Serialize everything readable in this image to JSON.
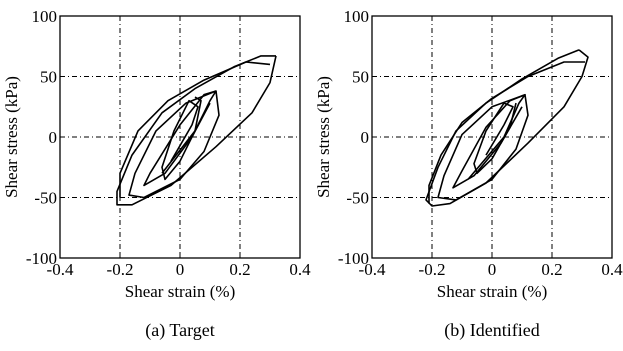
{
  "chart_data": [
    {
      "type": "line",
      "title": "",
      "caption": "(a)  Target",
      "xlabel": "Shear strain (%)",
      "ylabel": "Shear stress (kPa)",
      "xlim": [
        -0.4,
        0.4
      ],
      "ylim": [
        -100,
        100
      ],
      "xticks": [
        -0.4,
        -0.2,
        0,
        0.2,
        0.4
      ],
      "xtick_labels": [
        "-0.4",
        "-0.2",
        "0",
        "0.2",
        "0.4"
      ],
      "yticks": [
        -100,
        -50,
        0,
        50,
        100
      ],
      "ytick_labels": [
        "-100",
        "-50",
        "0",
        "50",
        "100"
      ],
      "grid": true,
      "series": [
        {
          "values": [
            [
              -0.03,
              -20
            ],
            [
              0.04,
              10
            ],
            [
              0.06,
              25
            ],
            [
              0.03,
              30
            ],
            [
              -0.02,
              5
            ],
            [
              -0.06,
              -25
            ],
            [
              -0.05,
              -35
            ],
            [
              0.0,
              -20
            ],
            [
              0.05,
              5
            ],
            [
              0.07,
              30
            ],
            [
              0.05,
              33
            ]
          ]
        },
        {
          "values": [
            [
              -0.06,
              -30
            ],
            [
              0.05,
              5
            ],
            [
              0.1,
              30
            ],
            [
              0.12,
              38
            ],
            [
              0.08,
              35
            ],
            [
              0.0,
              10
            ],
            [
              -0.1,
              -30
            ],
            [
              -0.12,
              -40
            ],
            [
              -0.05,
              -30
            ],
            [
              0.04,
              0
            ],
            [
              0.1,
              28
            ]
          ]
        },
        {
          "values": [
            [
              0.12,
              38
            ],
            [
              0.02,
              28
            ],
            [
              -0.08,
              5
            ],
            [
              -0.15,
              -30
            ],
            [
              -0.17,
              -48
            ],
            [
              -0.12,
              -50
            ],
            [
              0.0,
              -35
            ],
            [
              0.08,
              -12
            ],
            [
              0.13,
              18
            ],
            [
              0.12,
              38
            ]
          ]
        },
        {
          "values": [
            [
              0.32,
              67
            ],
            [
              0.27,
              67
            ],
            [
              0.18,
              58
            ],
            [
              0.05,
              40
            ],
            [
              -0.06,
              20
            ],
            [
              -0.16,
              -15
            ],
            [
              -0.21,
              -45
            ],
            [
              -0.21,
              -56
            ],
            [
              -0.16,
              -56
            ],
            [
              -0.03,
              -40
            ],
            [
              0.12,
              -8
            ],
            [
              0.24,
              20
            ],
            [
              0.3,
              45
            ],
            [
              0.32,
              67
            ]
          ]
        },
        {
          "values": [
            [
              0.3,
              60
            ],
            [
              0.22,
              62
            ],
            [
              0.08,
              47
            ],
            [
              -0.04,
              30
            ],
            [
              -0.14,
              5
            ],
            [
              -0.2,
              -30
            ],
            [
              -0.2,
              -50
            ]
          ]
        }
      ]
    },
    {
      "type": "line",
      "title": "",
      "caption": "(b)  Identified",
      "xlabel": "Shear strain (%)",
      "ylabel": "Shear stress (kPa)",
      "xlim": [
        -0.4,
        0.4
      ],
      "ylim": [
        -100,
        100
      ],
      "xticks": [
        -0.4,
        -0.2,
        0,
        0.2,
        0.4
      ],
      "xtick_labels": [
        "-0.4",
        "-0.2",
        "0",
        "0.2",
        "0.4"
      ],
      "yticks": [
        -100,
        -50,
        0,
        50,
        100
      ],
      "ytick_labels": [
        "-100",
        "-50",
        "0",
        "50",
        "100"
      ],
      "grid": true,
      "series": [
        {
          "values": [
            [
              -0.02,
              -15
            ],
            [
              0.04,
              10
            ],
            [
              0.07,
              25
            ],
            [
              0.04,
              28
            ],
            [
              -0.02,
              5
            ],
            [
              -0.06,
              -22
            ],
            [
              -0.05,
              -30
            ],
            [
              0.0,
              -18
            ],
            [
              0.06,
              8
            ],
            [
              0.08,
              28
            ]
          ]
        },
        {
          "values": [
            [
              -0.08,
              -35
            ],
            [
              0.04,
              0
            ],
            [
              0.09,
              28
            ],
            [
              0.11,
              35
            ],
            [
              0.06,
              30
            ],
            [
              -0.02,
              8
            ],
            [
              -0.1,
              -28
            ],
            [
              -0.13,
              -42
            ],
            [
              -0.06,
              -32
            ],
            [
              0.03,
              -5
            ],
            [
              0.1,
              25
            ]
          ]
        },
        {
          "values": [
            [
              0.11,
              35
            ],
            [
              0.0,
              25
            ],
            [
              -0.1,
              2
            ],
            [
              -0.16,
              -32
            ],
            [
              -0.18,
              -50
            ],
            [
              -0.12,
              -52
            ],
            [
              0.0,
              -35
            ],
            [
              0.08,
              -10
            ],
            [
              0.12,
              18
            ],
            [
              0.11,
              35
            ]
          ]
        },
        {
          "values": [
            [
              0.29,
              72
            ],
            [
              0.22,
              65
            ],
            [
              0.1,
              48
            ],
            [
              -0.02,
              28
            ],
            [
              -0.12,
              5
            ],
            [
              -0.18,
              -25
            ],
            [
              -0.22,
              -52
            ],
            [
              -0.2,
              -57
            ],
            [
              -0.14,
              -55
            ],
            [
              -0.02,
              -38
            ],
            [
              0.12,
              -5
            ],
            [
              0.24,
              25
            ],
            [
              0.3,
              50
            ],
            [
              0.32,
              66
            ],
            [
              0.29,
              72
            ]
          ]
        },
        {
          "values": [
            [
              0.31,
              62
            ],
            [
              0.24,
              62
            ],
            [
              0.12,
              50
            ],
            [
              0.0,
              32
            ],
            [
              -0.1,
              12
            ],
            [
              -0.17,
              -15
            ],
            [
              -0.21,
              -40
            ],
            [
              -0.21,
              -55
            ]
          ]
        }
      ]
    }
  ]
}
